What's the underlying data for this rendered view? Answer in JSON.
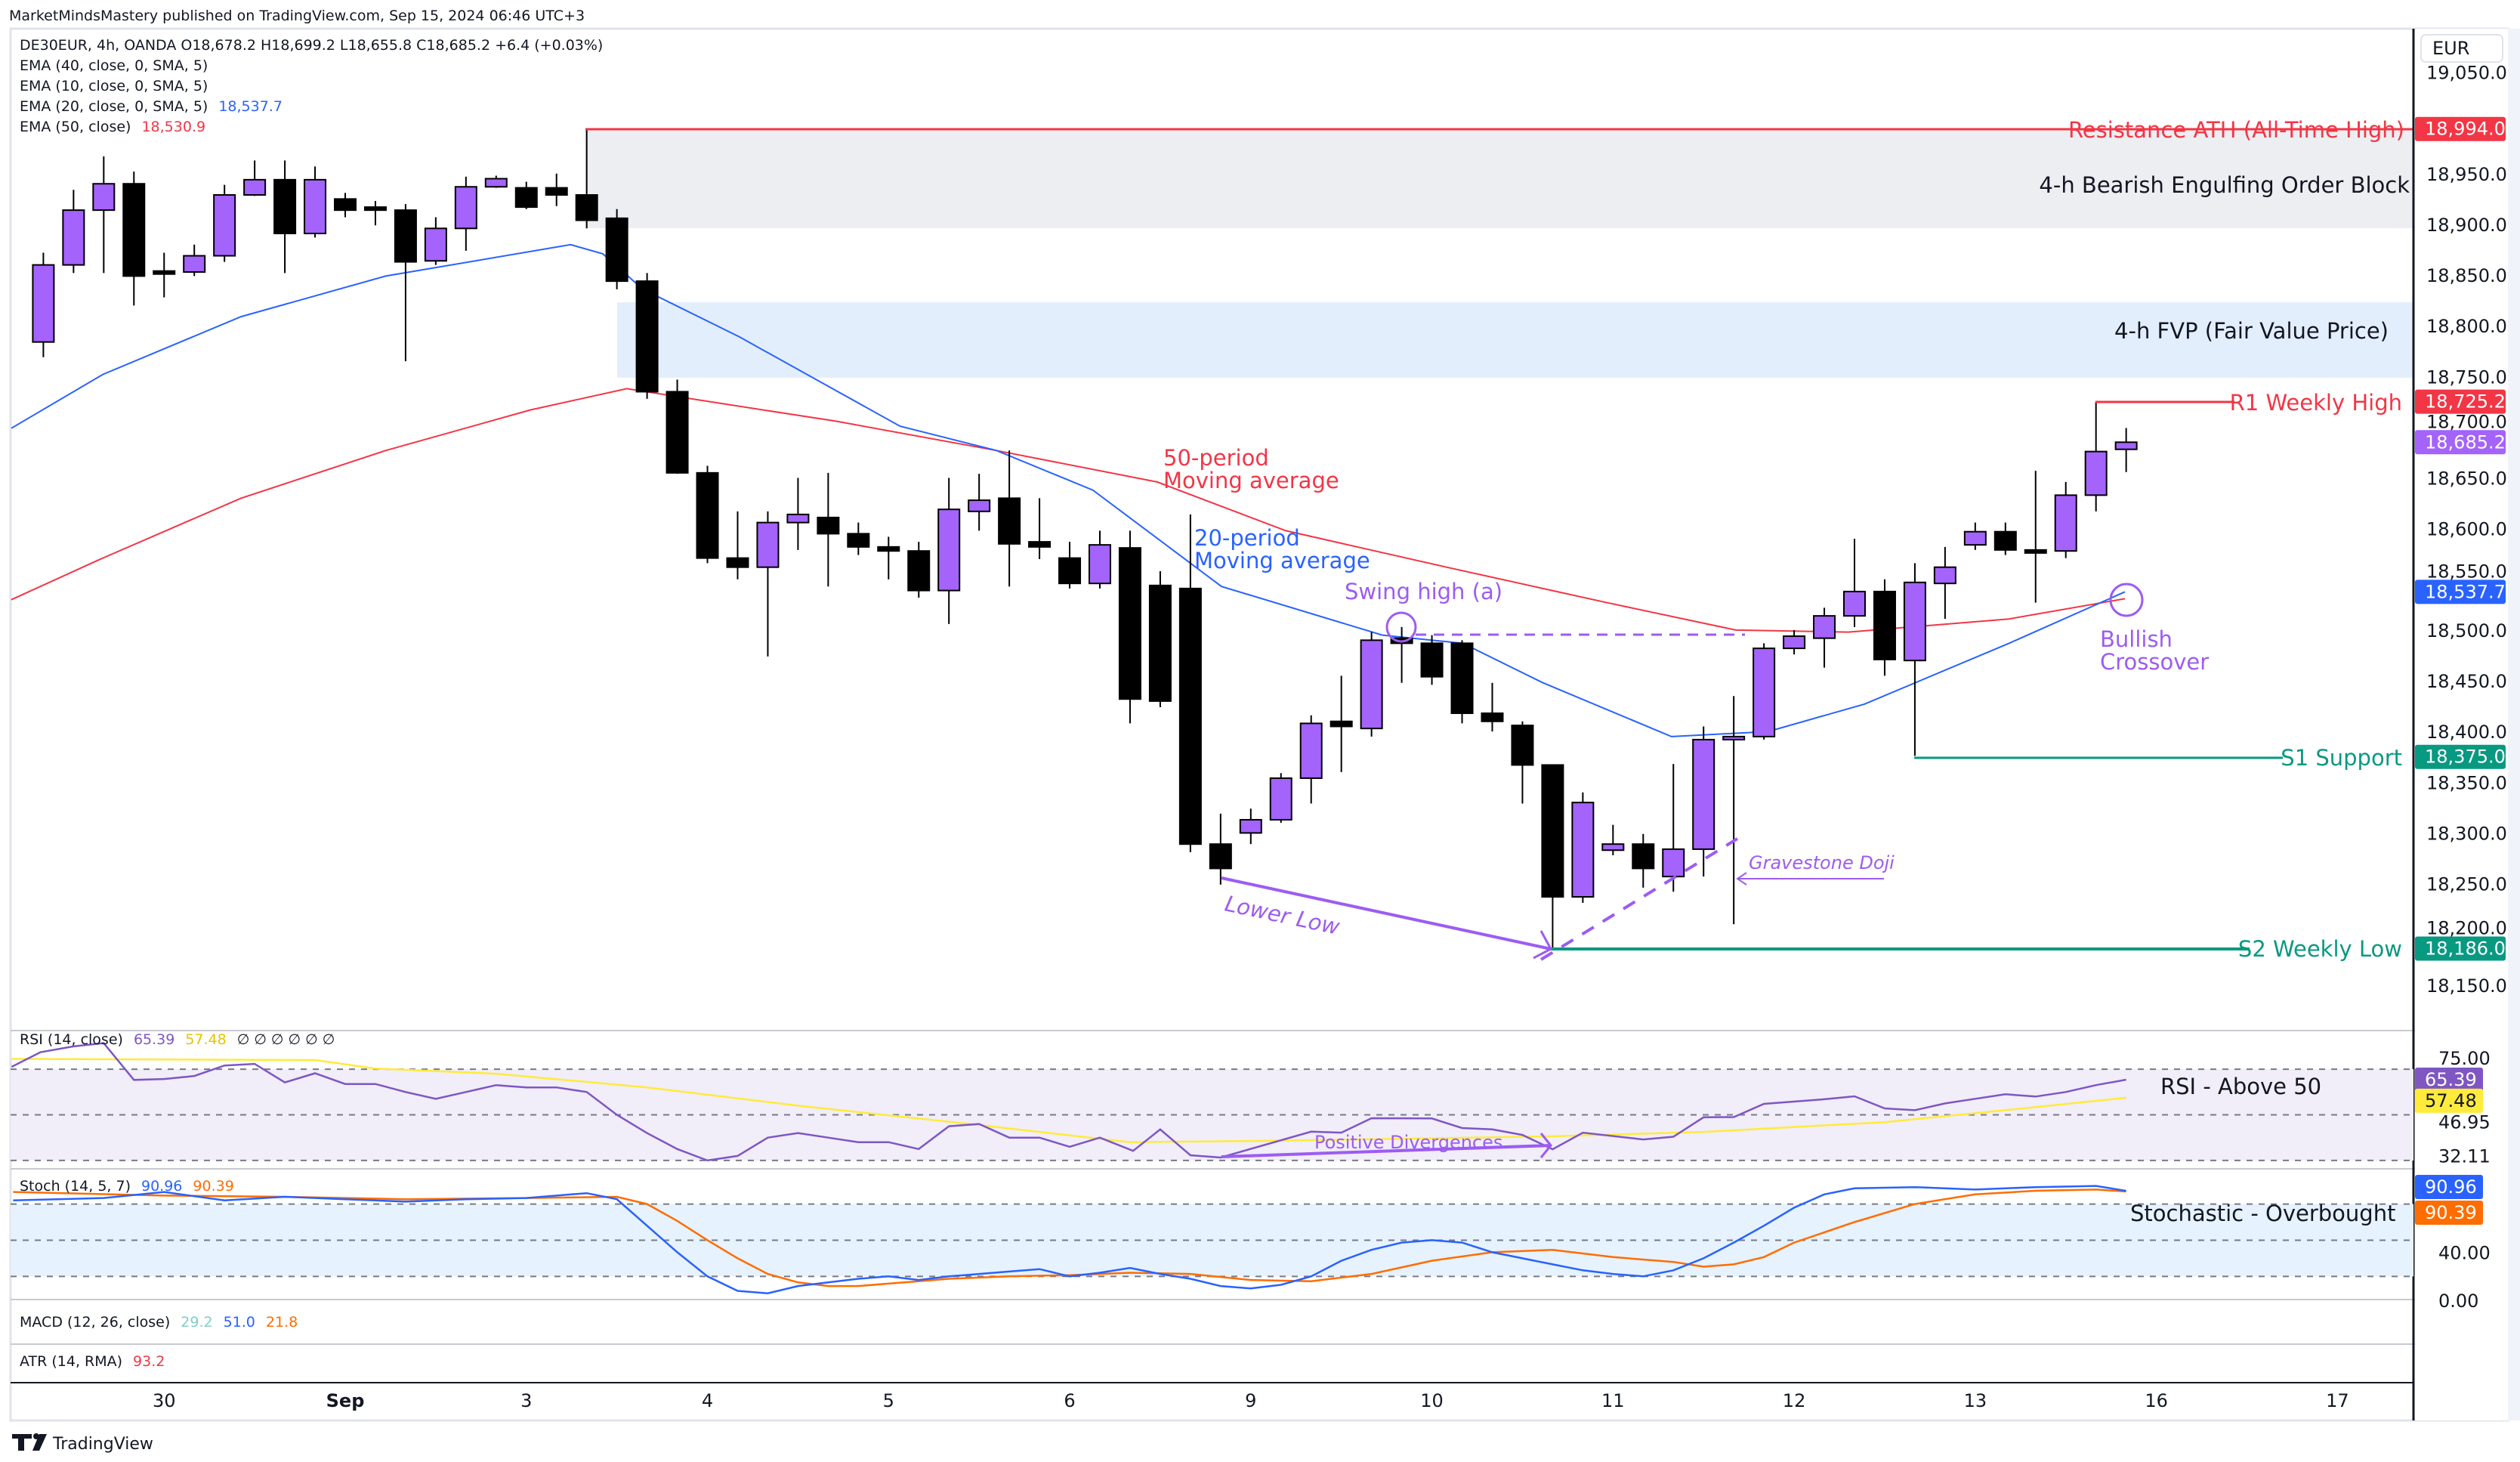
{
  "publish_line": "MarketMindsMastery published on TradingView.com, Sep 15, 2024 06:46 UTC+3",
  "legend": {
    "symbol_line": "DE30EUR, 4h, OANDA  O18,678.2  H18,699.2  L18,655.8  C18,685.2  +6.4 (+0.03%)",
    "ema40": "EMA (40, close, 0, SMA, 5)",
    "ema10": "EMA (10, close, 0, SMA, 5)",
    "ema20": "EMA (20, close, 0, SMA, 5)",
    "ema20_value": "18,537.7",
    "ema50": "EMA (50, close)",
    "ema50_value": "18,530.9"
  },
  "currency_button": "EUR",
  "colors": {
    "bull": "#a463fb",
    "bear": "#000000",
    "ema20": "#2962ff",
    "ema50": "#f23645",
    "support": "#089981",
    "annot": "#9c5cf2",
    "rsi": "#7e57c2",
    "rsi_ma": "#ffeb3b",
    "stoch_k": "#2962ff",
    "stoch_d": "#ff6d00"
  },
  "price_axis": [
    "19,050.0",
    "18,950.0",
    "18,900.0",
    "18,850.0",
    "18,800.0",
    "18,750.0",
    "18,700.0",
    "18,650.0",
    "18,600.0",
    "18,550.0",
    "18,500.0",
    "18,450.0",
    "18,400.0",
    "18,350.0",
    "18,300.0",
    "18,250.0",
    "18,200.0",
    "18,150.0"
  ],
  "price_axis_values": [
    19050,
    18950,
    18900,
    18850,
    18800,
    18750,
    18700,
    18650,
    18600,
    18550,
    18500,
    18450,
    18400,
    18350,
    18300,
    18250,
    18200,
    18150
  ],
  "price_tags": [
    {
      "label": "18,994.0",
      "price": 18994,
      "color": "#f23645"
    },
    {
      "label": "18,725.2",
      "price": 18725.2,
      "color": "#f23645"
    },
    {
      "label": "18,685.2",
      "price": 18685.2,
      "color": "#a463fb"
    },
    {
      "label": "18,537.7",
      "price": 18537.7,
      "color": "#2962ff"
    },
    {
      "label": "18,375.0",
      "price": 18375,
      "color": "#089981"
    },
    {
      "label": "18,186.0",
      "price": 18186,
      "color": "#089981"
    }
  ],
  "chart_data": {
    "type": "candlestick",
    "symbol": "DE30EUR",
    "timeframe": "4h",
    "candles_ohlc": [
      [
        18784,
        18872,
        18769,
        18860
      ],
      [
        18860,
        18934,
        18852,
        18914
      ],
      [
        18914,
        18967,
        18852,
        18940
      ],
      [
        18940,
        18952,
        18820,
        18849
      ],
      [
        18854,
        18872,
        18828,
        18851
      ],
      [
        18853,
        18880,
        18849,
        18869
      ],
      [
        18869,
        18939,
        18863,
        18929
      ],
      [
        18929,
        18963,
        18928,
        18944
      ],
      [
        18944,
        18963,
        18852,
        18891
      ],
      [
        18891,
        18957,
        18887,
        18944
      ],
      [
        18925,
        18931,
        18907,
        18914
      ],
      [
        18917,
        18923,
        18899,
        18914
      ],
      [
        18914,
        18920,
        18765,
        18863
      ],
      [
        18864,
        18907,
        18860,
        18896
      ],
      [
        18896,
        18947,
        18874,
        18937
      ],
      [
        18937,
        18948,
        18936,
        18945
      ],
      [
        18936,
        18942,
        18915,
        18917
      ],
      [
        18936,
        18950,
        18918,
        18929
      ],
      [
        18929,
        18994,
        18896,
        18904
      ],
      [
        18906,
        18915,
        18836,
        18844
      ],
      [
        18844,
        18852,
        18728,
        18735
      ],
      [
        18735,
        18747,
        18654,
        18655
      ],
      [
        18655,
        18662,
        18566,
        18571
      ],
      [
        18571,
        18617,
        18550,
        18562
      ],
      [
        18562,
        18617,
        18474,
        18606
      ],
      [
        18606,
        18650,
        18579,
        18614
      ],
      [
        18611,
        18655,
        18543,
        18595
      ],
      [
        18595,
        18606,
        18574,
        18582
      ],
      [
        18582,
        18592,
        18550,
        18578
      ],
      [
        18578,
        18587,
        18532,
        18539
      ],
      [
        18539,
        18650,
        18506,
        18619
      ],
      [
        18617,
        18654,
        18598,
        18628
      ],
      [
        18630,
        18677,
        18543,
        18585
      ],
      [
        18587,
        18630,
        18570,
        18582
      ],
      [
        18571,
        18587,
        18541,
        18546
      ],
      [
        18546,
        18598,
        18541,
        18584
      ],
      [
        18581,
        18598,
        18408,
        18432
      ],
      [
        18544,
        18558,
        18424,
        18430
      ],
      [
        18541,
        18614,
        18281,
        18289
      ],
      [
        18289,
        18319,
        18249,
        18265
      ],
      [
        18300,
        18324,
        18289,
        18313
      ],
      [
        18313,
        18359,
        18310,
        18354
      ],
      [
        18354,
        18416,
        18329,
        18408
      ],
      [
        18410,
        18455,
        18360,
        18405
      ],
      [
        18403,
        18498,
        18395,
        18490
      ],
      [
        18492,
        18503,
        18448,
        18487
      ],
      [
        18487,
        18495,
        18446,
        18454
      ],
      [
        18487,
        18490,
        18408,
        18418
      ],
      [
        18418,
        18448,
        18400,
        18410
      ],
      [
        18406,
        18410,
        18329,
        18367
      ],
      [
        18367,
        18367,
        18186,
        18237
      ],
      [
        18237,
        18340,
        18231,
        18330
      ],
      [
        18283,
        18308,
        18278,
        18289
      ],
      [
        18289,
        18299,
        18246,
        18265
      ],
      [
        18257,
        18368,
        18242,
        18284
      ],
      [
        18284,
        18405,
        18257,
        18392
      ],
      [
        18392,
        18435,
        18210,
        18395
      ],
      [
        18395,
        18487,
        18392,
        18482
      ],
      [
        18482,
        18500,
        18476,
        18494
      ],
      [
        18492,
        18522,
        18463,
        18514
      ],
      [
        18514,
        18590,
        18503,
        18538
      ],
      [
        18538,
        18550,
        18455,
        18471
      ],
      [
        18470,
        18566,
        18376,
        18547
      ],
      [
        18546,
        18582,
        18511,
        18562
      ],
      [
        18584,
        18606,
        18579,
        18597
      ],
      [
        18597,
        18606,
        18574,
        18579
      ],
      [
        18579,
        18657,
        18527,
        18576
      ],
      [
        18578,
        18646,
        18571,
        18633
      ],
      [
        18633,
        18725,
        18617,
        18676
      ],
      [
        18678.2,
        18699.2,
        18655.8,
        18685.2
      ]
    ],
    "ema20": [
      [
        -1.06,
        18699
      ],
      [
        1.97,
        18752
      ],
      [
        6.55,
        18809
      ],
      [
        11.34,
        18849
      ],
      [
        17.47,
        18880
      ],
      [
        18.53,
        18871
      ],
      [
        19.86,
        18836
      ],
      [
        23.06,
        18789
      ],
      [
        28.38,
        18701
      ],
      [
        31.58,
        18677
      ],
      [
        34.77,
        18638
      ],
      [
        39.03,
        18543
      ],
      [
        44.36,
        18495
      ],
      [
        47.02,
        18487
      ],
      [
        49.68,
        18448
      ],
      [
        53.94,
        18395
      ],
      [
        57.14,
        18400
      ],
      [
        60.33,
        18427
      ],
      [
        65.12,
        18487
      ],
      [
        68.96,
        18537.7
      ]
    ],
    "ema50": [
      [
        -1.06,
        18530
      ],
      [
        1.97,
        18571
      ],
      [
        6.55,
        18630
      ],
      [
        11.34,
        18677
      ],
      [
        16.13,
        18717
      ],
      [
        19.33,
        18738
      ],
      [
        21.46,
        18728
      ],
      [
        26.25,
        18706
      ],
      [
        31.58,
        18677
      ],
      [
        36.9,
        18646
      ],
      [
        41.16,
        18598
      ],
      [
        46.49,
        18562
      ],
      [
        51.81,
        18527
      ],
      [
        56.07,
        18500
      ],
      [
        59.8,
        18498
      ],
      [
        65.12,
        18511
      ],
      [
        68.96,
        18530.9
      ]
    ],
    "ylim": [
      18130,
      19060
    ],
    "x_tick_labels": [
      "30",
      "Sep",
      "3",
      "4",
      "5",
      "6",
      "9",
      "10",
      "11",
      "12",
      "13",
      "16",
      "17"
    ],
    "rsi": {
      "title": "RSI (14, close)",
      "value": "65.39",
      "ma_value": "57.48",
      "extra": "∅ ∅ ∅ ∅ ∅ ∅",
      "ticks": [
        "75.00",
        "46.95",
        "32.11"
      ],
      "tick_values": [
        75,
        46.95,
        32.11
      ],
      "levels": [
        70,
        50,
        30
      ],
      "series": [
        [
          -1.05,
          71
        ],
        [
          -0.1,
          77.4
        ],
        [
          1,
          80
        ],
        [
          2,
          81.4
        ],
        [
          3,
          65.3
        ],
        [
          4,
          65.7
        ],
        [
          5,
          67
        ],
        [
          6,
          71.6
        ],
        [
          7,
          72.3
        ],
        [
          8,
          64.2
        ],
        [
          9,
          68.2
        ],
        [
          10,
          63.5
        ],
        [
          11,
          63.5
        ],
        [
          12,
          60
        ],
        [
          13,
          57
        ],
        [
          14,
          60
        ],
        [
          15,
          63
        ],
        [
          16,
          62
        ],
        [
          17,
          62
        ],
        [
          18,
          60
        ],
        [
          19,
          50
        ],
        [
          20,
          42
        ],
        [
          21,
          35
        ],
        [
          22,
          30
        ],
        [
          23,
          32
        ],
        [
          24,
          40
        ],
        [
          25,
          42
        ],
        [
          26,
          40
        ],
        [
          27,
          38
        ],
        [
          28,
          38
        ],
        [
          29,
          35
        ],
        [
          30,
          45
        ],
        [
          31,
          46
        ],
        [
          32,
          40
        ],
        [
          33,
          40
        ],
        [
          34,
          36
        ],
        [
          35,
          40
        ],
        [
          36.1,
          34.2
        ],
        [
          37,
          43.6
        ],
        [
          38,
          32.3
        ],
        [
          39,
          31.3
        ],
        [
          42,
          42.6
        ],
        [
          43,
          42.2
        ],
        [
          44,
          48.5
        ],
        [
          46,
          48.4
        ],
        [
          47,
          44.2
        ],
        [
          48,
          43.6
        ],
        [
          49,
          41.2
        ],
        [
          50,
          34.9
        ],
        [
          51,
          42.2
        ],
        [
          53,
          39.2
        ],
        [
          54,
          40.4
        ],
        [
          55,
          48.9
        ],
        [
          56,
          49
        ],
        [
          57,
          54.8
        ],
        [
          59,
          56.8
        ],
        [
          60,
          58.1
        ],
        [
          61,
          52.8
        ],
        [
          62,
          52
        ],
        [
          63,
          55
        ],
        [
          64,
          57
        ],
        [
          65,
          59
        ],
        [
          66,
          58
        ],
        [
          67,
          60
        ],
        [
          68,
          63
        ],
        [
          69,
          65.39
        ]
      ],
      "ma_series": [
        [
          -1.05,
          74.5
        ],
        [
          9,
          74
        ],
        [
          11,
          70.3
        ],
        [
          15,
          68
        ],
        [
          20,
          62
        ],
        [
          25,
          54
        ],
        [
          30,
          47
        ],
        [
          36,
          38
        ],
        [
          40,
          38.5
        ],
        [
          45,
          39.5
        ],
        [
          50,
          40.6
        ],
        [
          55,
          42.5
        ],
        [
          61,
          46.8
        ],
        [
          65,
          52
        ],
        [
          69,
          57.48
        ]
      ]
    },
    "stoch": {
      "title": "Stoch (14, 5, 7)",
      "k_value": "90.96",
      "d_value": "90.39",
      "ticks": [
        "40.00",
        "0.00"
      ],
      "tick_values": [
        40,
        0
      ],
      "levels": [
        80,
        50,
        20
      ],
      "k": [
        [
          -1,
          83
        ],
        [
          2,
          85
        ],
        [
          4,
          90
        ],
        [
          6,
          83
        ],
        [
          8,
          86
        ],
        [
          10,
          84
        ],
        [
          12,
          82
        ],
        [
          14,
          84
        ],
        [
          16,
          85
        ],
        [
          18,
          89
        ],
        [
          19,
          84
        ],
        [
          20,
          62
        ],
        [
          21,
          40
        ],
        [
          22,
          20
        ],
        [
          23,
          8
        ],
        [
          24,
          6
        ],
        [
          25,
          12
        ],
        [
          26,
          15
        ],
        [
          27,
          18
        ],
        [
          28,
          20
        ],
        [
          29,
          17
        ],
        [
          30,
          20
        ],
        [
          31,
          22
        ],
        [
          32,
          24
        ],
        [
          33,
          26
        ],
        [
          34,
          20
        ],
        [
          35,
          23
        ],
        [
          36,
          27
        ],
        [
          37,
          22
        ],
        [
          38,
          18
        ],
        [
          39,
          12
        ],
        [
          40,
          10
        ],
        [
          41,
          13
        ],
        [
          42,
          20
        ],
        [
          43,
          33
        ],
        [
          44,
          42
        ],
        [
          45,
          48
        ],
        [
          46,
          50
        ],
        [
          47,
          48
        ],
        [
          48,
          40
        ],
        [
          49,
          35
        ],
        [
          50,
          30
        ],
        [
          51,
          25
        ],
        [
          52,
          22
        ],
        [
          53,
          20
        ],
        [
          54,
          25
        ],
        [
          55,
          35
        ],
        [
          56,
          48
        ],
        [
          57,
          62
        ],
        [
          58,
          77
        ],
        [
          59,
          88
        ],
        [
          60,
          93
        ],
        [
          62,
          94
        ],
        [
          64,
          92
        ],
        [
          66,
          94
        ],
        [
          68,
          95
        ],
        [
          69,
          90.96
        ]
      ],
      "d": [
        [
          -1,
          90
        ],
        [
          4,
          87
        ],
        [
          8,
          86
        ],
        [
          12,
          84
        ],
        [
          16,
          85
        ],
        [
          19,
          86
        ],
        [
          20,
          80
        ],
        [
          21,
          66
        ],
        [
          22,
          50
        ],
        [
          23,
          35
        ],
        [
          24,
          22
        ],
        [
          25,
          15
        ],
        [
          26,
          12
        ],
        [
          27,
          12
        ],
        [
          28,
          14
        ],
        [
          29,
          16
        ],
        [
          30,
          18
        ],
        [
          32,
          20
        ],
        [
          34,
          21
        ],
        [
          36,
          23
        ],
        [
          38,
          22
        ],
        [
          40,
          17
        ],
        [
          42,
          16
        ],
        [
          44,
          22
        ],
        [
          46,
          33
        ],
        [
          48,
          40
        ],
        [
          50,
          42
        ],
        [
          52,
          36
        ],
        [
          54,
          32
        ],
        [
          55,
          28
        ],
        [
          56,
          30
        ],
        [
          57,
          36
        ],
        [
          58,
          48
        ],
        [
          60,
          65
        ],
        [
          62,
          80
        ],
        [
          64,
          88
        ],
        [
          66,
          91
        ],
        [
          68,
          92
        ],
        [
          69,
          90.39
        ]
      ]
    },
    "macd": {
      "title": "MACD (12, 26, close)",
      "v1": "29.2",
      "v2": "51.0",
      "v3": "21.8"
    },
    "atr": {
      "title": "ATR (14, RMA)",
      "value": "93.2"
    }
  },
  "annotations": {
    "resistance": "Resistance ATH (All-Time High)",
    "order_block": "4-h Bearish Engulfing Order Block",
    "fvp": "4-h FVP (Fair Value Price)",
    "r1": "R1 Weekly High",
    "s1": "S1 Support",
    "s2": "S2 Weekly Low",
    "ma50_l1": "50-period",
    "ma50_l2": "Moving average",
    "ma20_l1": "20-period",
    "ma20_l2": "Moving average",
    "swing_high": "Swing high (a)",
    "bullish_l1": "Bullish",
    "bullish_l2": "Crossover",
    "lower_low": "Lower Low",
    "gravestone": "Gravestone Doji",
    "pos_div": "Positive Divergences",
    "rsi_note": "RSI - Above 50",
    "stoch_note": "Stochastic - Overbought"
  },
  "footer_brand": "TradingView"
}
